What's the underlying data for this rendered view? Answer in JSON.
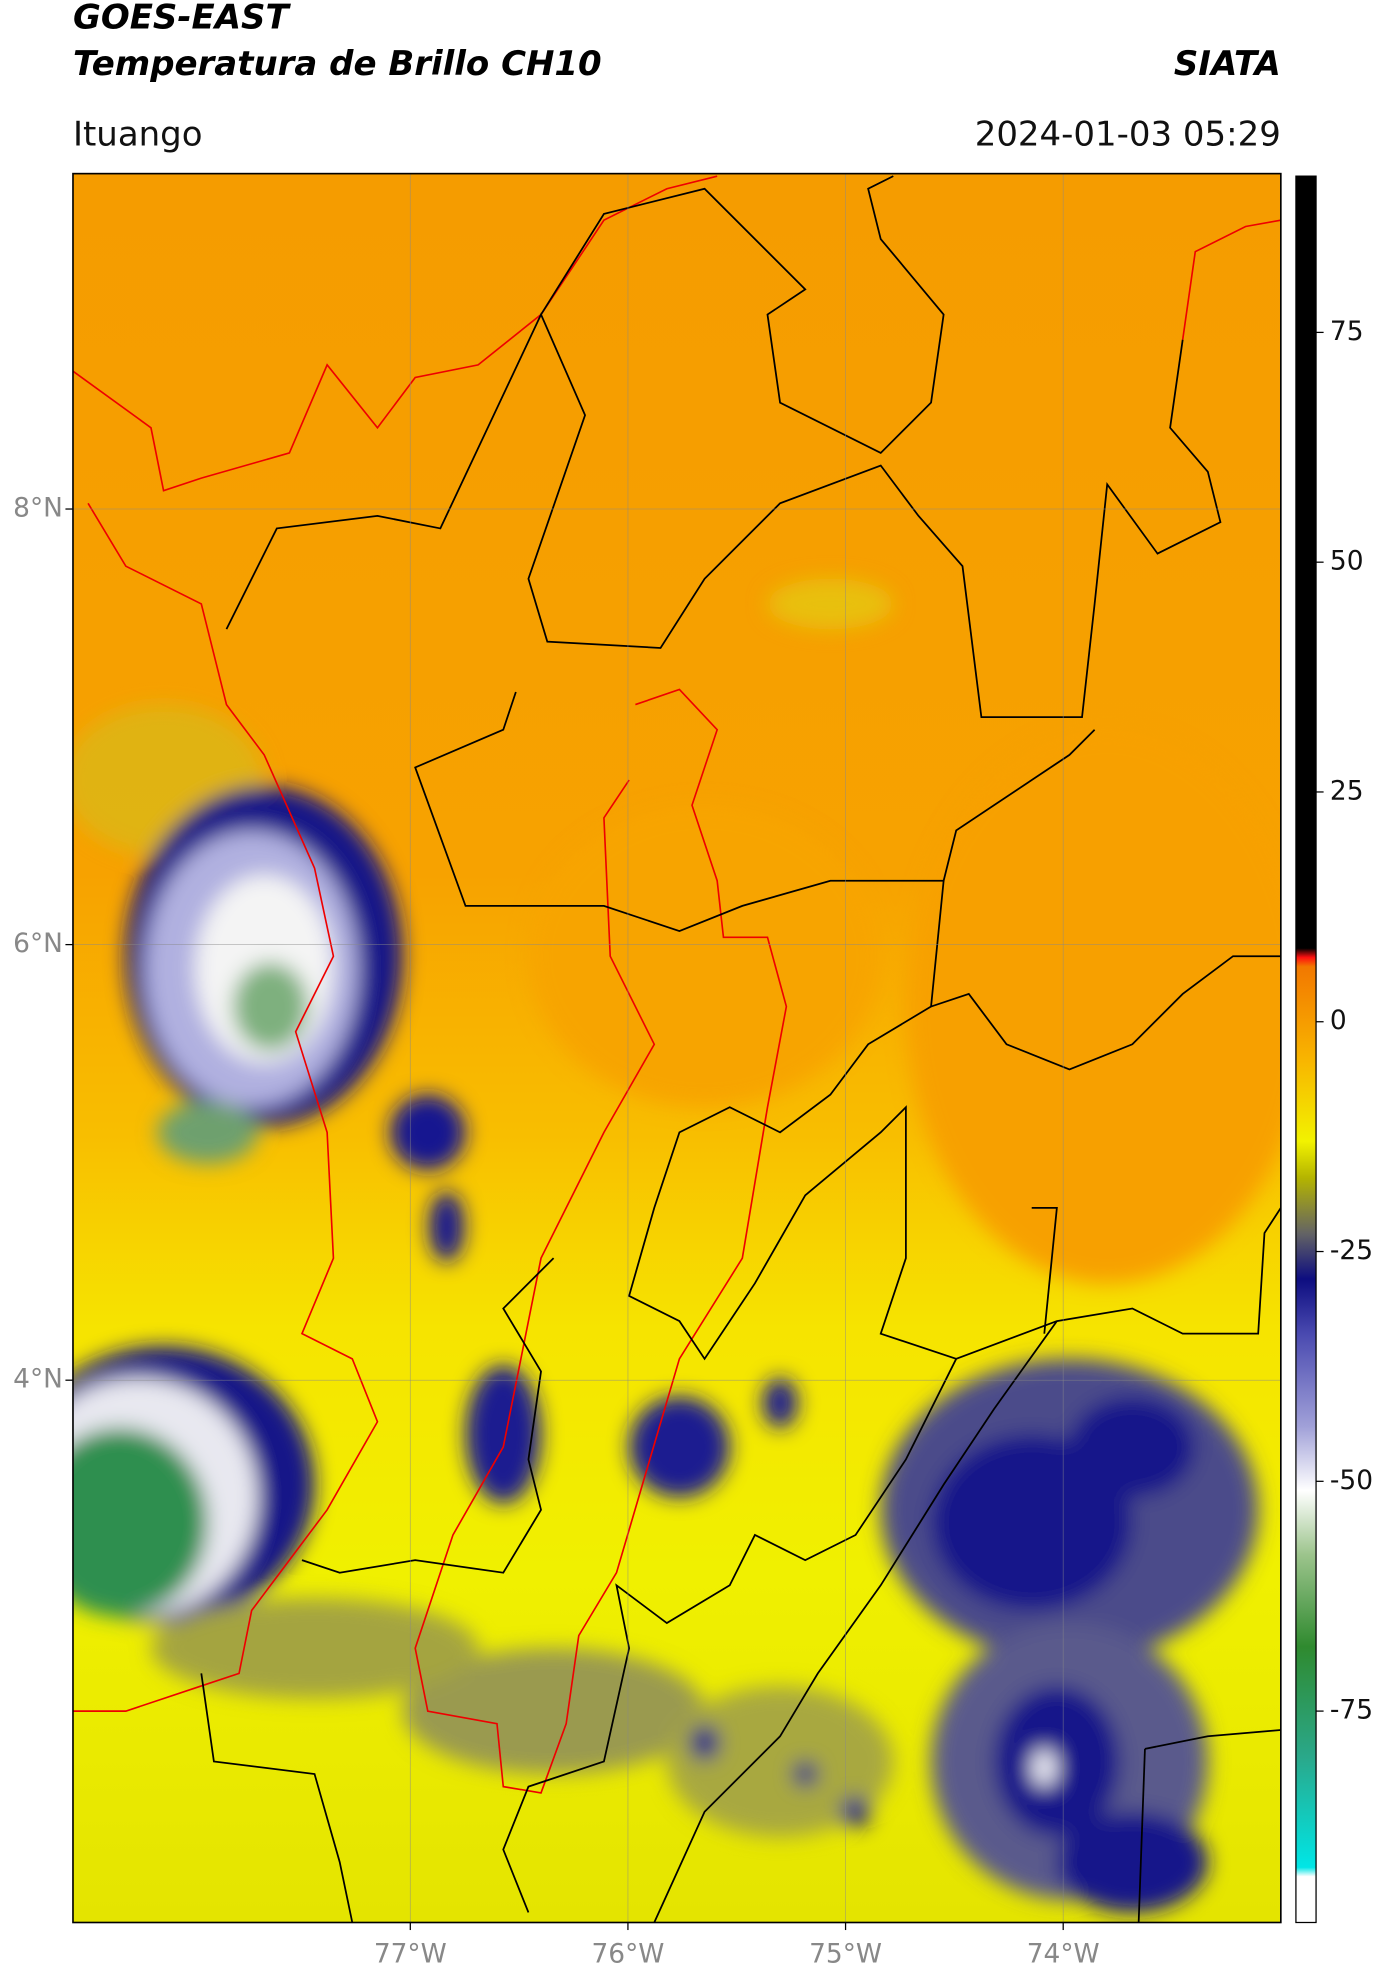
{
  "header": {
    "title": "GOES-EAST",
    "subtitle": "Temperatura de Brillo CH10",
    "org": "SIATA",
    "location": "Ituango",
    "datetime": "2024-01-03 05:29"
  },
  "map": {
    "xlim": [
      -78.55,
      -73.0
    ],
    "ylim": [
      1.51,
      9.54
    ],
    "xticks": [
      {
        "value": -77,
        "label": "77°W"
      },
      {
        "value": -76,
        "label": "76°W"
      },
      {
        "value": -75,
        "label": "75°W"
      },
      {
        "value": -74,
        "label": "74°W"
      }
    ],
    "yticks": [
      {
        "value": 4,
        "label": "4°N"
      },
      {
        "value": 6,
        "label": "6°N"
      },
      {
        "value": 8,
        "label": "8°N"
      }
    ],
    "grid": true
  },
  "colorbar": {
    "lim": [
      -98,
      92
    ],
    "ticks": [
      -75,
      -50,
      -25,
      0,
      25,
      50,
      75
    ],
    "stops": [
      {
        "value": -98,
        "color": "#ffffff"
      },
      {
        "value": -93,
        "color": "#ffffff"
      },
      {
        "value": -92,
        "color": "#00e6e6"
      },
      {
        "value": -80,
        "color": "#2aa88a"
      },
      {
        "value": -68,
        "color": "#2f8a2f"
      },
      {
        "value": -58,
        "color": "#9cc48c"
      },
      {
        "value": -51,
        "color": "#ffffff"
      },
      {
        "value": -44,
        "color": "#a0a0d8"
      },
      {
        "value": -34,
        "color": "#4a4ab0"
      },
      {
        "value": -28,
        "color": "#0d0d80"
      },
      {
        "value": -23,
        "color": "#646464"
      },
      {
        "value": -17,
        "color": "#b4b400"
      },
      {
        "value": -13,
        "color": "#f2f200"
      },
      {
        "value": -4,
        "color": "#f8b400"
      },
      {
        "value": 6,
        "color": "#f27800"
      },
      {
        "value": 7,
        "color": "#ff1010"
      },
      {
        "value": 8,
        "color": "#000000"
      },
      {
        "value": 92,
        "color": "#000000"
      }
    ]
  }
}
